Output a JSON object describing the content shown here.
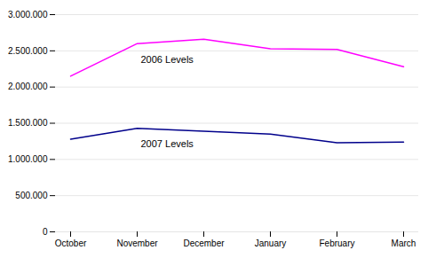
{
  "chart_data": {
    "type": "line",
    "categories": [
      "October",
      "November",
      "December",
      "January",
      "February",
      "March"
    ],
    "series": [
      {
        "name": "2006 Levels",
        "color": "#ff00ff",
        "values": [
          2150000,
          2600000,
          2660000,
          2530000,
          2520000,
          2280000
        ]
      },
      {
        "name": "2007 Levels",
        "color": "#00008b",
        "values": [
          1280000,
          1430000,
          1390000,
          1350000,
          1230000,
          1240000
        ]
      }
    ],
    "ylim": [
      0,
      3000000
    ],
    "yticks": [
      0,
      {
        "value": 500000,
        "label": "500.000"
      },
      {
        "value": 1000000,
        "label": "1.000.000"
      },
      {
        "value": 1500000,
        "label": "1.500.000"
      },
      {
        "value": 2000000,
        "label": "2.000.000"
      },
      {
        "value": 2500000,
        "label": "2.500.000"
      },
      {
        "value": 3000000,
        "label": "3.000.000"
      }
    ],
    "grid": true
  }
}
